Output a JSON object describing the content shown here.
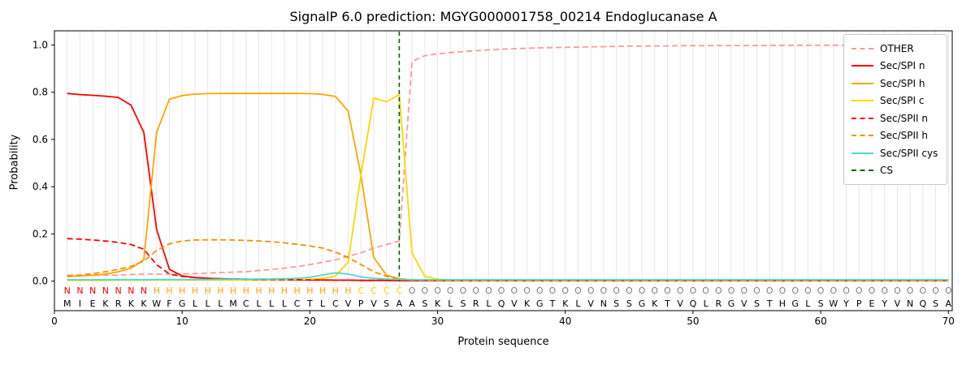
{
  "chart_data": {
    "type": "line",
    "title": "SignalP 6.0 prediction: MGYG000001758_00214 Endoglucanase A",
    "xlabel": "Protein sequence",
    "ylabel": "Probability",
    "xlim": [
      0,
      70.3
    ],
    "ylim": [
      -0.125,
      1.06
    ],
    "xticks": [
      0,
      10,
      20,
      30,
      40,
      50,
      60,
      70
    ],
    "yticks": [
      0,
      0.2,
      0.4,
      0.6,
      0.8,
      1
    ],
    "grid": "light vertical gridline at every residue position 1-70",
    "legend_position": "upper right",
    "series": [
      {
        "name": "OTHER",
        "color": "#ff9999",
        "dash": "dashed",
        "values": [
          0.025,
          0.025,
          0.025,
          0.025,
          0.025,
          0.028,
          0.03,
          0.03,
          0.03,
          0.03,
          0.032,
          0.034,
          0.036,
          0.038,
          0.04,
          0.045,
          0.05,
          0.055,
          0.062,
          0.07,
          0.08,
          0.09,
          0.105,
          0.12,
          0.14,
          0.155,
          0.17,
          0.93,
          0.955,
          0.962,
          0.968,
          0.972,
          0.976,
          0.979,
          0.982,
          0.984,
          0.986,
          0.988,
          0.989,
          0.99,
          0.991,
          0.992,
          0.993,
          0.994,
          0.995,
          0.995,
          0.996,
          0.996,
          0.997,
          0.997,
          0.997,
          0.998,
          0.998,
          0.998,
          0.998,
          0.998,
          0.999,
          0.999,
          0.999,
          0.999,
          0.999,
          0.999,
          0.999,
          0.999,
          0.999,
          0.999,
          0.999,
          0.999,
          0.999,
          0.999
        ]
      },
      {
        "name": "Sec/SPI n",
        "color": "#ff0000",
        "dash": "solid",
        "values": [
          0.795,
          0.79,
          0.787,
          0.783,
          0.778,
          0.745,
          0.63,
          0.22,
          0.05,
          0.022,
          0.015,
          0.012,
          0.01,
          0.009,
          0.008,
          0.007,
          0.006,
          0.006,
          0.005,
          0.005,
          0.005,
          0.004,
          0.004,
          0.003,
          0.003,
          0.003,
          0.002,
          0.002,
          0.002,
          0.002,
          0.002,
          0.002,
          0.002,
          0.002,
          0.002,
          0.002,
          0.002,
          0.002,
          0.002,
          0.002,
          0.002,
          0.002,
          0.002,
          0.002,
          0.002,
          0.002,
          0.002,
          0.002,
          0.002,
          0.002,
          0.002,
          0.002,
          0.002,
          0.002,
          0.002,
          0.002,
          0.002,
          0.002,
          0.002,
          0.002,
          0.002,
          0.002,
          0.002,
          0.002,
          0.002,
          0.002,
          0.002,
          0.002,
          0.002,
          0.002
        ]
      },
      {
        "name": "Sec/SPI h",
        "color": "#ffa500",
        "dash": "solid",
        "values": [
          0.02,
          0.022,
          0.025,
          0.03,
          0.04,
          0.055,
          0.09,
          0.63,
          0.77,
          0.786,
          0.792,
          0.794,
          0.795,
          0.795,
          0.795,
          0.795,
          0.795,
          0.795,
          0.795,
          0.794,
          0.791,
          0.782,
          0.72,
          0.45,
          0.1,
          0.025,
          0.01,
          0.005,
          0.004,
          0.003,
          0.002,
          0.002,
          0.002,
          0.002,
          0.002,
          0.002,
          0.002,
          0.002,
          0.002,
          0.002,
          0.002,
          0.002,
          0.002,
          0.002,
          0.002,
          0.002,
          0.002,
          0.002,
          0.002,
          0.002,
          0.002,
          0.002,
          0.002,
          0.002,
          0.002,
          0.002,
          0.002,
          0.002,
          0.002,
          0.002,
          0.002,
          0.002,
          0.002,
          0.002,
          0.002,
          0.002,
          0.002,
          0.002,
          0.002,
          0.002
        ]
      },
      {
        "name": "Sec/SPI c",
        "color": "#ffd700",
        "dash": "solid",
        "values": [
          0.003,
          0.003,
          0.003,
          0.003,
          0.004,
          0.004,
          0.004,
          0.005,
          0.005,
          0.005,
          0.005,
          0.005,
          0.005,
          0.005,
          0.005,
          0.005,
          0.006,
          0.006,
          0.007,
          0.008,
          0.012,
          0.022,
          0.08,
          0.45,
          0.775,
          0.76,
          0.79,
          0.12,
          0.02,
          0.008,
          0.005,
          0.004,
          0.003,
          0.003,
          0.003,
          0.003,
          0.003,
          0.003,
          0.003,
          0.003,
          0.003,
          0.003,
          0.003,
          0.003,
          0.003,
          0.003,
          0.003,
          0.003,
          0.003,
          0.003,
          0.003,
          0.003,
          0.003,
          0.003,
          0.003,
          0.003,
          0.003,
          0.003,
          0.003,
          0.003,
          0.003,
          0.003,
          0.003,
          0.003,
          0.003,
          0.003,
          0.003,
          0.003,
          0.003,
          0.003
        ]
      },
      {
        "name": "Sec/SPII n",
        "color": "#ff0000",
        "dash": "dashed",
        "values": [
          0.18,
          0.178,
          0.174,
          0.17,
          0.164,
          0.155,
          0.135,
          0.07,
          0.03,
          0.02,
          0.015,
          0.012,
          0.01,
          0.009,
          0.008,
          0.007,
          0.007,
          0.006,
          0.006,
          0.005,
          0.005,
          0.004,
          0.004,
          0.003,
          0.003,
          0.003,
          0.002,
          0.002,
          0.002,
          0.002,
          0.002,
          0.002,
          0.002,
          0.002,
          0.002,
          0.002,
          0.002,
          0.002,
          0.002,
          0.002,
          0.002,
          0.002,
          0.002,
          0.002,
          0.002,
          0.002,
          0.002,
          0.002,
          0.002,
          0.002,
          0.002,
          0.002,
          0.002,
          0.002,
          0.002,
          0.002,
          0.002,
          0.002,
          0.002,
          0.002,
          0.002,
          0.002,
          0.002,
          0.002,
          0.002,
          0.002,
          0.002,
          0.002,
          0.002,
          0.002
        ]
      },
      {
        "name": "Sec/SPII h",
        "color": "#ff8c00",
        "dash": "dashed",
        "values": [
          0.02,
          0.025,
          0.032,
          0.04,
          0.05,
          0.063,
          0.085,
          0.13,
          0.158,
          0.17,
          0.174,
          0.175,
          0.175,
          0.174,
          0.172,
          0.17,
          0.167,
          0.162,
          0.156,
          0.149,
          0.14,
          0.123,
          0.1,
          0.07,
          0.04,
          0.02,
          0.01,
          0.006,
          0.004,
          0.003,
          0.002,
          0.002,
          0.002,
          0.002,
          0.002,
          0.002,
          0.002,
          0.002,
          0.002,
          0.002,
          0.002,
          0.002,
          0.002,
          0.002,
          0.002,
          0.002,
          0.002,
          0.002,
          0.002,
          0.002,
          0.002,
          0.002,
          0.002,
          0.002,
          0.002,
          0.002,
          0.002,
          0.002,
          0.002,
          0.002,
          0.002,
          0.002,
          0.002,
          0.002,
          0.002,
          0.002,
          0.002,
          0.002,
          0.002,
          0.002
        ]
      },
      {
        "name": "Sec/SPII cys",
        "color": "#40e0d0",
        "dash": "solid",
        "values": [
          0.006,
          0.006,
          0.006,
          0.006,
          0.006,
          0.006,
          0.006,
          0.007,
          0.007,
          0.007,
          0.007,
          0.007,
          0.008,
          0.008,
          0.008,
          0.009,
          0.009,
          0.01,
          0.012,
          0.016,
          0.026,
          0.035,
          0.03,
          0.018,
          0.012,
          0.009,
          0.007,
          0.006,
          0.006,
          0.006,
          0.006,
          0.006,
          0.006,
          0.006,
          0.006,
          0.006,
          0.006,
          0.006,
          0.006,
          0.006,
          0.006,
          0.006,
          0.006,
          0.006,
          0.006,
          0.006,
          0.006,
          0.006,
          0.006,
          0.006,
          0.006,
          0.006,
          0.006,
          0.006,
          0.006,
          0.006,
          0.006,
          0.006,
          0.006,
          0.006,
          0.006,
          0.006,
          0.006,
          0.006,
          0.006,
          0.006,
          0.006,
          0.006,
          0.006,
          0.006
        ]
      }
    ],
    "cs": {
      "label": "CS",
      "position": 27,
      "color": "#006400",
      "dash": "dashed"
    },
    "sequence": "MIEKRKKWFGLLLMCLLLCTLCVPVSAASKLSRLQVKGTKLVNSSGKTVQLRGVSTHGLSWYPEYVNQSA",
    "region_annotation": "NNNNNNNHHHHHHHHHHHHHHHHCCCCOOOOOOOOOOOOOOOOOOOOOOOOOOOOOOOOOOOOOOOOOOO",
    "annotation_colors": {
      "N": "#ff0000",
      "H": "#ffa500",
      "C": "#ffd700",
      "O": "#808080"
    }
  }
}
